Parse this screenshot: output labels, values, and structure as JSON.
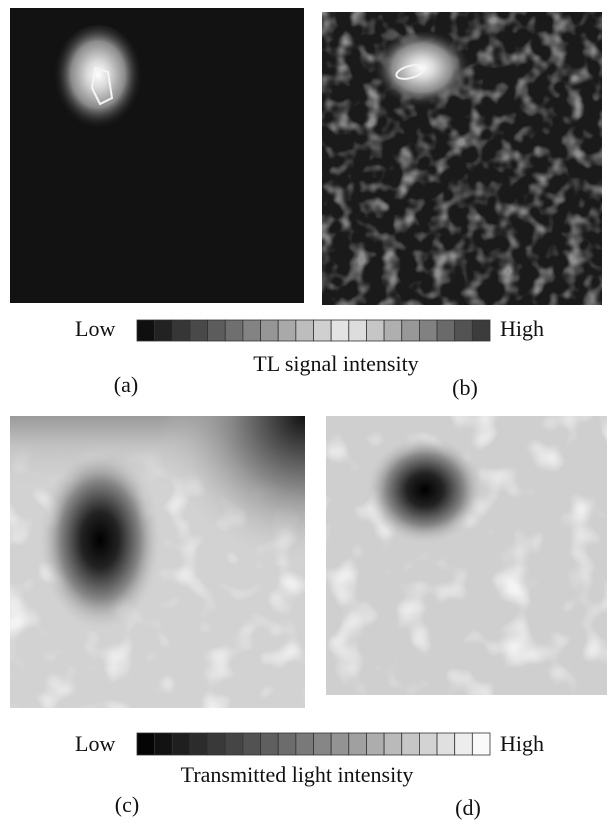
{
  "panels": [
    {
      "label": "(a)"
    },
    {
      "label": "(b)"
    },
    {
      "label": "(c)"
    },
    {
      "label": "(d)"
    }
  ],
  "colorbars": [
    {
      "low": "Low",
      "high": "High",
      "title": "TL signal intensity"
    },
    {
      "low": "Low",
      "high": "High",
      "title": "Transmitted light intensity"
    }
  ]
}
